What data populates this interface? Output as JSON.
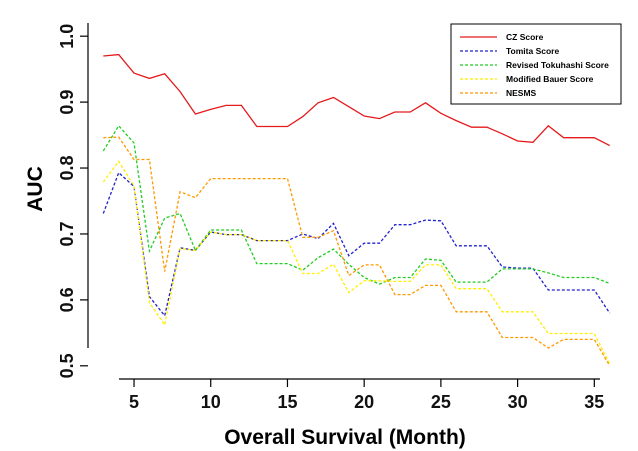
{
  "chart_data": {
    "type": "line",
    "title": "",
    "xlabel": "Overall Survival (Month)",
    "ylabel": "AUC",
    "xlim": [
      2,
      37
    ],
    "ylim": [
      0.48,
      1.02
    ],
    "xticks": [
      "5",
      "10",
      "15",
      "20",
      "25",
      "30",
      "35"
    ],
    "yticks": [
      "0.5",
      "0.6",
      "0.7",
      "0.8",
      "0.9",
      "1.0"
    ],
    "legend_position": "top-right",
    "grid": false,
    "x": [
      3,
      4,
      5,
      6,
      7,
      8,
      9,
      10,
      11,
      12,
      13,
      14,
      15,
      16,
      17,
      18,
      19,
      20,
      21,
      22,
      23,
      24,
      25,
      26,
      27,
      28,
      29,
      30,
      31,
      32,
      33,
      34,
      35,
      36
    ],
    "series": [
      {
        "name": "CZ Score",
        "color": "#e41a1c",
        "dash": "solid",
        "values": [
          0.97,
          0.972,
          0.944,
          0.936,
          0.943,
          0.916,
          0.882,
          0.889,
          0.895,
          0.895,
          0.863,
          0.863,
          0.863,
          0.878,
          0.899,
          0.907,
          0.893,
          0.879,
          0.875,
          0.885,
          0.885,
          0.899,
          0.883,
          0.872,
          0.862,
          0.862,
          0.852,
          0.841,
          0.839,
          0.864,
          0.846,
          0.846,
          0.846,
          0.834
        ]
      },
      {
        "name": "Tomita Score",
        "color": "#2222cc",
        "dash": "dashed",
        "values": [
          0.731,
          0.793,
          0.772,
          0.605,
          0.576,
          0.679,
          0.675,
          0.703,
          0.699,
          0.699,
          0.69,
          0.69,
          0.69,
          0.7,
          0.693,
          0.716,
          0.667,
          0.686,
          0.686,
          0.714,
          0.714,
          0.721,
          0.72,
          0.682,
          0.682,
          0.682,
          0.65,
          0.648,
          0.648,
          0.615,
          0.615,
          0.615,
          0.615,
          0.58
        ]
      },
      {
        "name": "Revised Tokuhashi Score",
        "color": "#22cc22",
        "dash": "dashed",
        "values": [
          0.826,
          0.864,
          0.838,
          0.674,
          0.724,
          0.731,
          0.675,
          0.706,
          0.706,
          0.706,
          0.655,
          0.655,
          0.655,
          0.645,
          0.664,
          0.677,
          0.654,
          0.634,
          0.624,
          0.634,
          0.634,
          0.662,
          0.66,
          0.627,
          0.627,
          0.627,
          0.647,
          0.647,
          0.647,
          0.641,
          0.634,
          0.634,
          0.634,
          0.625
        ]
      },
      {
        "name": "Modified Bauer Score",
        "color": "#ffee00",
        "dash": "dashed",
        "values": [
          0.779,
          0.81,
          0.773,
          0.596,
          0.562,
          0.678,
          0.675,
          0.703,
          0.699,
          0.699,
          0.69,
          0.69,
          0.69,
          0.64,
          0.64,
          0.654,
          0.611,
          0.629,
          0.629,
          0.628,
          0.628,
          0.653,
          0.653,
          0.617,
          0.617,
          0.617,
          0.582,
          0.582,
          0.582,
          0.549,
          0.549,
          0.549,
          0.549,
          0.503
        ]
      },
      {
        "name": "NESMS",
        "color": "#ff9900",
        "dash": "dashed",
        "values": [
          0.846,
          0.847,
          0.813,
          0.813,
          0.643,
          0.764,
          0.755,
          0.784,
          0.784,
          0.784,
          0.784,
          0.784,
          0.784,
          0.695,
          0.695,
          0.705,
          0.637,
          0.653,
          0.653,
          0.608,
          0.608,
          0.622,
          0.622,
          0.582,
          0.582,
          0.582,
          0.543,
          0.543,
          0.543,
          0.527,
          0.54,
          0.54,
          0.54,
          0.5
        ]
      }
    ]
  }
}
